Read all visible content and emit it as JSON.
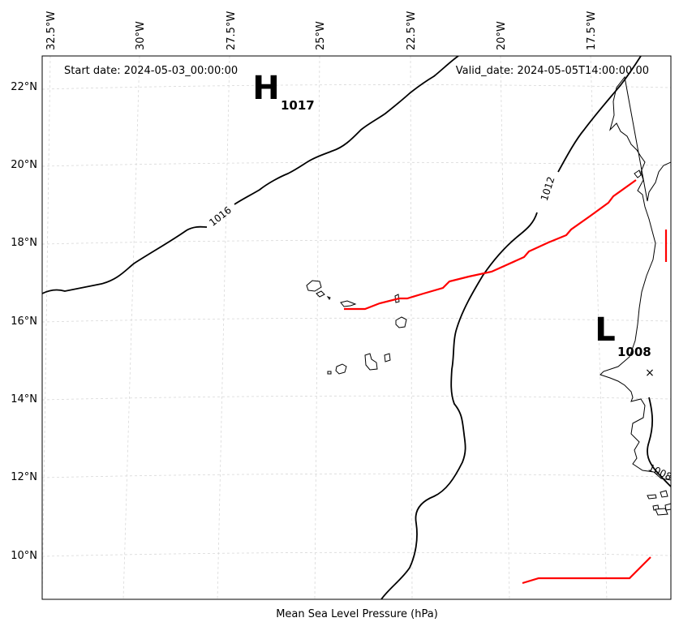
{
  "map": {
    "start_date": "Start date: 2024-05-03_00:00:00",
    "valid_date": "Valid_date: 2024-05-05T14:00:00.00",
    "caption": "Mean Sea Level Pressure (hPa)",
    "lon_labels": [
      "32.5°W",
      "30°W",
      "27.5°W",
      "25°W",
      "22.5°W",
      "20°W",
      "17.5°W"
    ],
    "lat_labels": [
      "22°N",
      "20°N",
      "18°N",
      "16°N",
      "14°N",
      "12°N",
      "10°N"
    ],
    "isobar_labels": [
      "1016",
      "1012",
      "1008"
    ],
    "high": {
      "symbol": "H",
      "value": "1017"
    },
    "low": {
      "symbol": "L",
      "value": "1008",
      "center_marker": "×"
    },
    "colors": {
      "isobar": "#000000",
      "track": "#ff0000",
      "grid": "#cccccc",
      "coast": "#000000"
    }
  }
}
